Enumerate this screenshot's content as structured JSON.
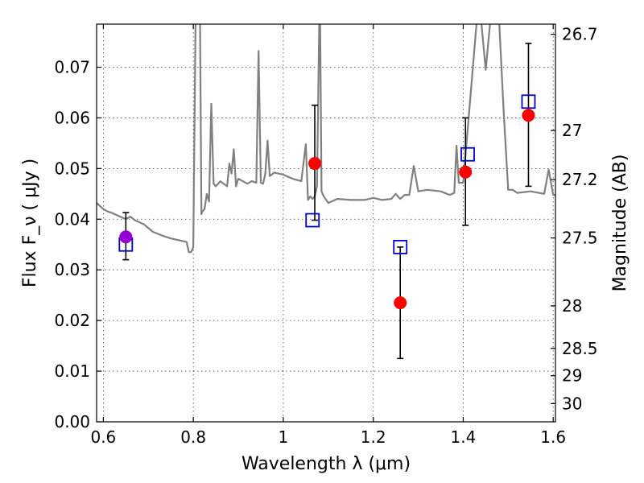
{
  "chart_data": {
    "type": "scatter",
    "title": "",
    "xlabel": "Wavelength  λ (μm)",
    "ylabel": "Flux  F_ν  ( μJy )",
    "ylabel_right": "Magnitude (AB)",
    "xlim": [
      0.585,
      1.605
    ],
    "ylim": [
      0.0,
      0.0785
    ],
    "grid": true,
    "x_ticks": [
      0.6,
      0.8,
      1.0,
      1.2,
      1.4,
      1.6
    ],
    "x_tick_labels": [
      "0.6",
      "0.8",
      "1",
      "1.2",
      "1.4",
      "1.6"
    ],
    "y_ticks": [
      0.0,
      0.01,
      0.02,
      0.03,
      0.04,
      0.05,
      0.06,
      0.07
    ],
    "y_tick_labels": [
      "0.00",
      "0.01",
      "0.02",
      "0.03",
      "0.04",
      "0.05",
      "0.06",
      "0.07"
    ],
    "right_ticks": [
      {
        "label": "26.7",
        "flux": 0.0765
      },
      {
        "label": "27",
        "flux": 0.0575
      },
      {
        "label": "27.2",
        "flux": 0.0478
      },
      {
        "label": "27.5",
        "flux": 0.0363
      },
      {
        "label": "28",
        "flux": 0.0229
      },
      {
        "label": "28.5",
        "flux": 0.0145
      },
      {
        "label": "29",
        "flux": 0.0091
      },
      {
        "label": "30",
        "flux": 0.0036
      }
    ],
    "colors": {
      "model": "#808080",
      "observed": "#ff0000",
      "observed_optical": "#9400d3",
      "model_photometry": "#0000cc",
      "errorbar": "#000000"
    },
    "series": [
      {
        "kind": "observed_optical",
        "points": [
          {
            "x": 0.65,
            "y": 0.0365,
            "yerr_low": 0.0045,
            "yerr_high": 0.0048
          }
        ]
      },
      {
        "kind": "observed",
        "points": [
          {
            "x": 1.07,
            "y": 0.051,
            "yerr_low": 0.0112,
            "yerr_high": 0.0115
          },
          {
            "x": 1.26,
            "y": 0.0235,
            "yerr_low": 0.011,
            "yerr_high": 0.011
          },
          {
            "x": 1.405,
            "y": 0.0493,
            "yerr_low": 0.0105,
            "yerr_high": 0.0107
          },
          {
            "x": 1.545,
            "y": 0.0605,
            "yerr_low": 0.014,
            "yerr_high": 0.0142
          }
        ]
      },
      {
        "kind": "model_photometry",
        "points": [
          {
            "x": 0.65,
            "y": 0.035
          },
          {
            "x": 1.065,
            "y": 0.0398
          },
          {
            "x": 1.26,
            "y": 0.0345
          },
          {
            "x": 1.41,
            "y": 0.0528
          },
          {
            "x": 1.545,
            "y": 0.0632
          }
        ]
      },
      {
        "kind": "model",
        "x": [
          0.585,
          0.6,
          0.61,
          0.62,
          0.63,
          0.65,
          0.66,
          0.67,
          0.69,
          0.71,
          0.73,
          0.75,
          0.77,
          0.785,
          0.79,
          0.795,
          0.8,
          0.805,
          0.808,
          0.81,
          0.815,
          0.818,
          0.82,
          0.825,
          0.83,
          0.835,
          0.84,
          0.845,
          0.85,
          0.86,
          0.875,
          0.88,
          0.885,
          0.89,
          0.895,
          0.9,
          0.91,
          0.92,
          0.93,
          0.94,
          0.945,
          0.95,
          0.955,
          0.96,
          0.965,
          0.97,
          0.98,
          1.0,
          1.02,
          1.04,
          1.05,
          1.055,
          1.06,
          1.065,
          1.07,
          1.075,
          1.08,
          1.082,
          1.085,
          1.09,
          1.1,
          1.12,
          1.15,
          1.18,
          1.2,
          1.22,
          1.24,
          1.25,
          1.26,
          1.27,
          1.28,
          1.29,
          1.3,
          1.32,
          1.35,
          1.37,
          1.38,
          1.385,
          1.39,
          1.4,
          1.43,
          1.44,
          1.45,
          1.46,
          1.48,
          1.49,
          1.5,
          1.51,
          1.52,
          1.55,
          1.58,
          1.59,
          1.6,
          1.605
        ],
        "y": [
          0.0432,
          0.042,
          0.0415,
          0.0412,
          0.0408,
          0.04,
          0.0405,
          0.0398,
          0.039,
          0.0375,
          0.0368,
          0.0362,
          0.0358,
          0.0355,
          0.0335,
          0.0335,
          0.0345,
          0.079,
          0.079,
          0.079,
          0.079,
          0.041,
          0.0415,
          0.042,
          0.045,
          0.0435,
          0.0628,
          0.047,
          0.0465,
          0.0475,
          0.0465,
          0.051,
          0.049,
          0.0538,
          0.0465,
          0.048,
          0.0475,
          0.047,
          0.0475,
          0.0472,
          0.0732,
          0.0472,
          0.047,
          0.049,
          0.0555,
          0.0485,
          0.0492,
          0.0488,
          0.048,
          0.0475,
          0.0548,
          0.0438,
          0.0445,
          0.044,
          0.0445,
          0.0465,
          0.079,
          0.079,
          0.0455,
          0.0445,
          0.0432,
          0.044,
          0.0438,
          0.0438,
          0.0442,
          0.0438,
          0.044,
          0.045,
          0.044,
          0.0448,
          0.0448,
          0.0505,
          0.0455,
          0.0458,
          0.0455,
          0.0448,
          0.0452,
          0.0545,
          0.0472,
          0.0472,
          0.079,
          0.079,
          0.0695,
          0.079,
          0.079,
          0.0612,
          0.0458,
          0.0458,
          0.0452,
          0.0455,
          0.045,
          0.0498,
          0.0448,
          0.0448
        ]
      }
    ]
  }
}
